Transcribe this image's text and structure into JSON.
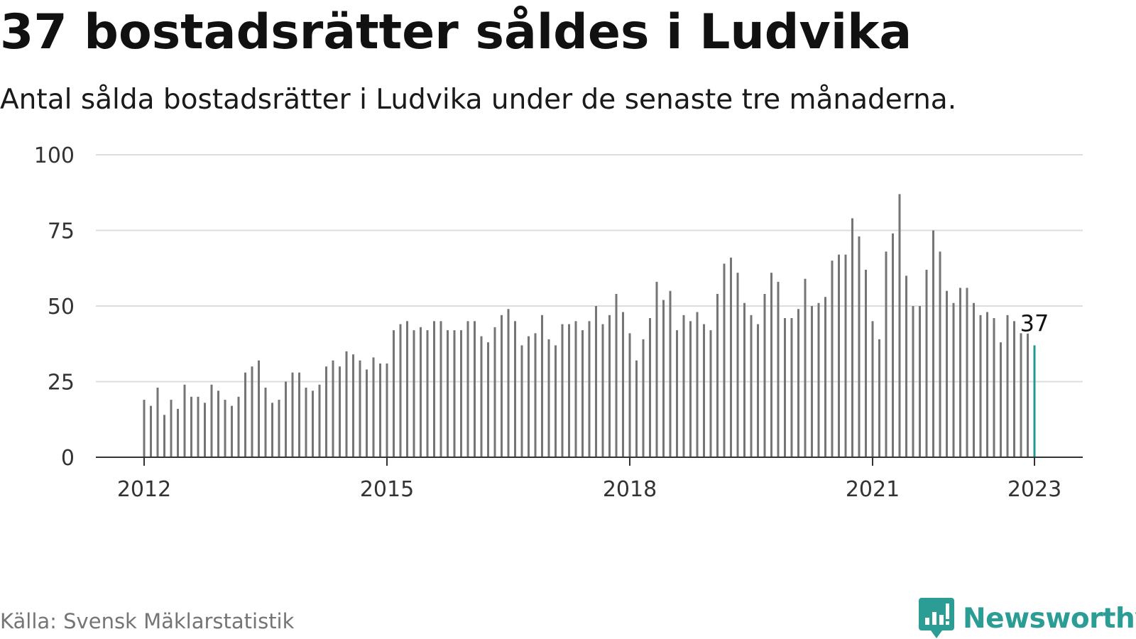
{
  "header": {
    "title": "37 bostadsrätter såldes i Ludvika",
    "subtitle": "Antal sålda bostadsrätter i Ludvika under de senaste tre månaderna."
  },
  "footer": {
    "source": "Källa: Svensk Mäklarstatistik",
    "logo_text": "Newsworthy",
    "logo_icon": "bar-chart-speech-bubble-icon"
  },
  "colors": {
    "bar": "#757575",
    "highlight": "#1f9a8f",
    "grid": "#dddddd",
    "axis": "#333333",
    "brand": "#2b9d95"
  },
  "chart_data": {
    "type": "bar",
    "title": "",
    "xlabel": "",
    "ylabel": "",
    "ylim": [
      0,
      100
    ],
    "yticks": [
      0,
      25,
      50,
      75,
      100
    ],
    "xticks": [
      "2012",
      "2015",
      "2018",
      "2021",
      "2023"
    ],
    "grid": true,
    "highlight_label": "37",
    "series": [
      {
        "start": "2012-01",
        "frequency": "monthly",
        "values": [
          19,
          17,
          23,
          14,
          19,
          16,
          24,
          20,
          20,
          18,
          24,
          22,
          19,
          17,
          20,
          28,
          30,
          32,
          23,
          18,
          19,
          25,
          28,
          28,
          23,
          22,
          24,
          30,
          32,
          30,
          35,
          34,
          32,
          29,
          33,
          31,
          31,
          42,
          44,
          45,
          42,
          43,
          42,
          45,
          45,
          42,
          42,
          42,
          45,
          45,
          40,
          38,
          43,
          47,
          49,
          45,
          37,
          40,
          41,
          47,
          39,
          37,
          44,
          44,
          45,
          42,
          45,
          50,
          44,
          47,
          54,
          48,
          41,
          32,
          39,
          46,
          58,
          52,
          55,
          42,
          47,
          45,
          48,
          44,
          42,
          54,
          64,
          66,
          61,
          51,
          47,
          44,
          54,
          61,
          58,
          46,
          46,
          49,
          59,
          50,
          51,
          53,
          65,
          67,
          67,
          79,
          73,
          62,
          45,
          39,
          68,
          74,
          87,
          60,
          50,
          50,
          62,
          75,
          68,
          55,
          51,
          56,
          56,
          51,
          47,
          48,
          46,
          38,
          47,
          45,
          41,
          41,
          37
        ]
      }
    ]
  }
}
